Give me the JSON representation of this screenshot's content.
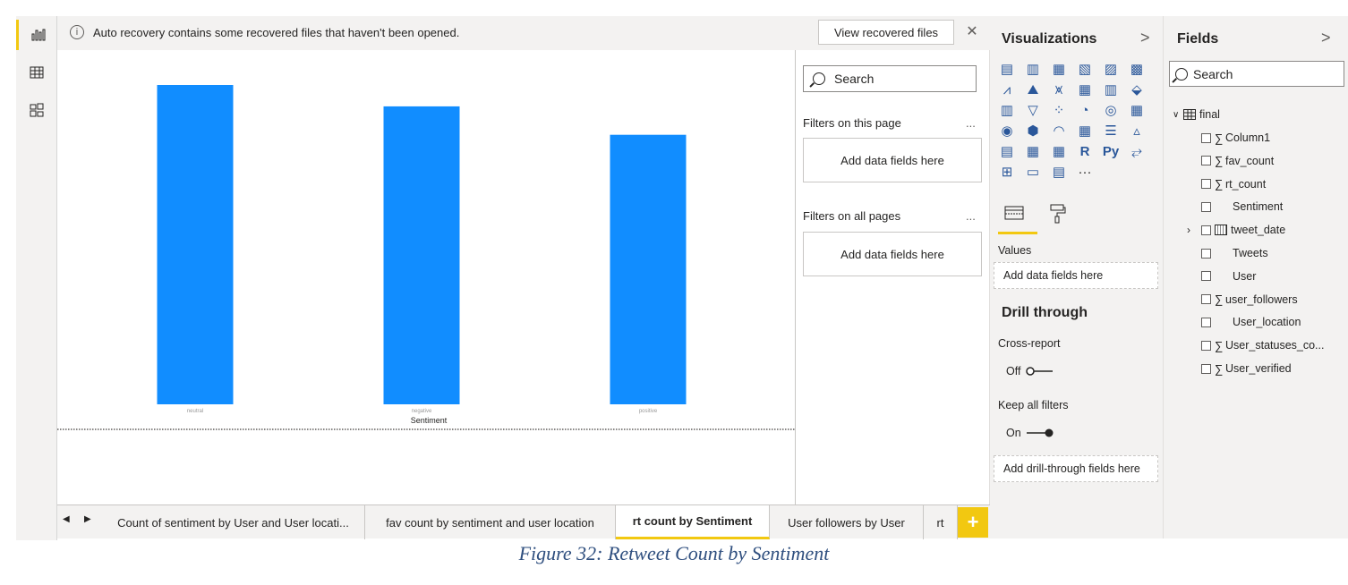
{
  "notification": {
    "message": "Auto recovery contains some recovered files that haven't been opened.",
    "view_button": "View recovered files",
    "close_glyph": "✕"
  },
  "rail": {
    "items": [
      {
        "name": "report-view-icon",
        "active": true
      },
      {
        "name": "data-view-icon",
        "active": false
      },
      {
        "name": "model-view-icon",
        "active": false
      }
    ]
  },
  "chart_data": {
    "type": "bar",
    "categories": [
      "neutral",
      "negative",
      "positive"
    ],
    "values": [
      100,
      93.3,
      84.4
    ],
    "xlabel": "Sentiment",
    "color": "#118dff"
  },
  "filters": {
    "search_placeholder": "Search",
    "page_label": "Filters on this page",
    "page_more": "...",
    "page_drop": "Add data fields here",
    "all_label": "Filters on all pages",
    "all_more": "...",
    "all_drop": "Add data fields here"
  },
  "visualizations": {
    "title": "Visualizations",
    "chevron": ">",
    "more_glyph": "···",
    "r_label": "R",
    "py_label": "Py",
    "values_label": "Values",
    "values_drop": "Add data fields here",
    "drill_title": "Drill through",
    "cross_report_label": "Cross-report",
    "cross_report_state": "Off",
    "keep_filters_label": "Keep all filters",
    "keep_filters_state": "On",
    "drill_drop": "Add drill-through fields here"
  },
  "fields": {
    "title": "Fields",
    "chevron": ">",
    "search_placeholder": "Search",
    "table_name": "final",
    "items": [
      {
        "label": "Column1",
        "sigma": true
      },
      {
        "label": "fav_count",
        "sigma": true
      },
      {
        "label": "rt_count",
        "sigma": true
      },
      {
        "label": "Sentiment",
        "sigma": false
      },
      {
        "label": "tweet_date",
        "sigma": false,
        "date": true
      },
      {
        "label": "Tweets",
        "sigma": false
      },
      {
        "label": "User",
        "sigma": false
      },
      {
        "label": "user_followers",
        "sigma": true
      },
      {
        "label": "User_location",
        "sigma": false
      },
      {
        "label": "User_statuses_co...",
        "sigma": true
      },
      {
        "label": "User_verified",
        "sigma": true
      }
    ]
  },
  "tabs": {
    "items": [
      {
        "label": "Count of sentiment by User and User locati...",
        "active": false
      },
      {
        "label": "fav count by sentiment and user location",
        "active": false
      },
      {
        "label": "rt count by Sentiment",
        "active": true
      },
      {
        "label": "User followers by User",
        "active": false
      },
      {
        "label": "rt",
        "active": false
      }
    ],
    "add_glyph": "+"
  },
  "caption": "Figure 32: Retweet Count by Sentiment"
}
